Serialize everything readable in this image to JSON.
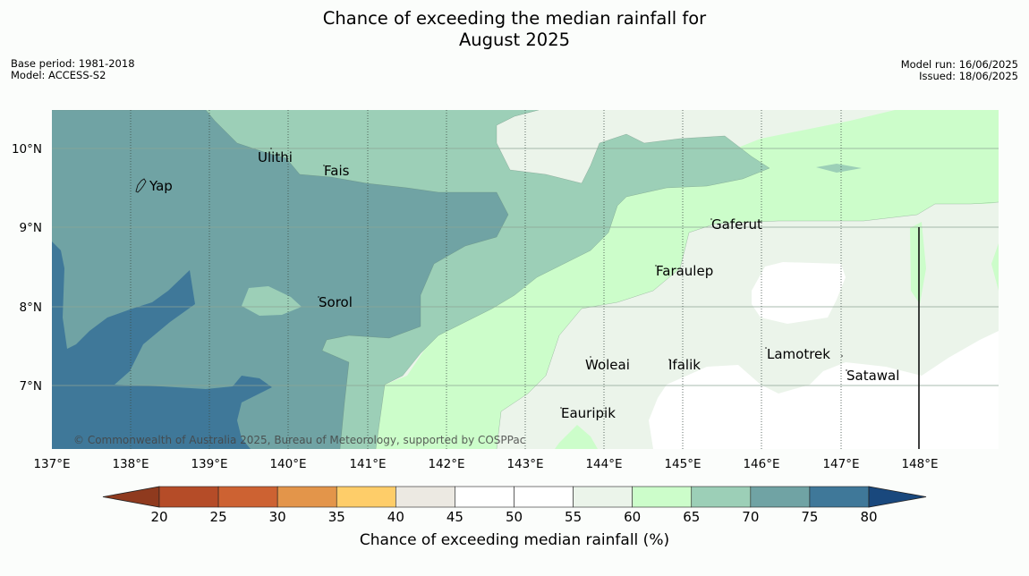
{
  "title_line1": "Chance of exceeding the median rainfall for",
  "title_line2": "August 2025",
  "base_period": "Base period: 1981-2018",
  "model": "Model: ACCESS-S2",
  "model_run": "Model run: 16/06/2025",
  "issued": "Issued: 18/06/2025",
  "map": {
    "lon_labels": [
      "137°E",
      "138°E",
      "139°E",
      "140°E",
      "141°E",
      "142°E",
      "143°E",
      "144°E",
      "145°E",
      "146°E",
      "147°E",
      "148°E"
    ],
    "lat_labels": [
      "10°N",
      "9°N",
      "8°N",
      "7°N"
    ],
    "places": [
      "Ulithi",
      "Fais",
      "Yap",
      "Gaferut",
      "Faraulep",
      "Sorol",
      "Woleai",
      "Ifalik",
      "Lamotrek",
      "Satawal",
      "Eauripik"
    ],
    "copyright": "© Commonwealth of Australia 2025, Bureau of Meteorology, supported by COSPPac"
  },
  "colorbar": {
    "ticks": [
      "20",
      "25",
      "30",
      "35",
      "40",
      "45",
      "50",
      "55",
      "60",
      "65",
      "70",
      "75",
      "80"
    ],
    "colors": [
      "#8f3a1e",
      "#b54c28",
      "#cd6232",
      "#e3954a",
      "#fecd69",
      "#ece9e2",
      "#ffffff",
      "#ffffff",
      "#ebf4ea",
      "#ccfdca",
      "#9ccfb7",
      "#70a3a4",
      "#3f7899",
      "#19487d"
    ],
    "title": "Chance of exceeding median rainfall (%)"
  },
  "legend_colors": {
    "c60_65": "#ebf4ea",
    "c65_70": "#ccfdca",
    "c70_75": "#9ccfb7",
    "c75_80": "#70a3a4",
    "c80_plus": "#3f7899",
    "white": "#ffffff"
  }
}
